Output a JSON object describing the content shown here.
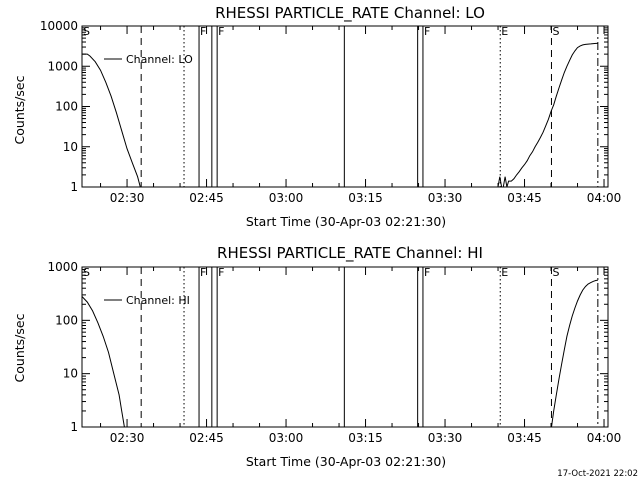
{
  "stamp": "17-Oct-2021 22:02",
  "chart_data": [
    {
      "type": "line",
      "title": "RHESSI PARTICLE_RATE Channel: LO",
      "xlabel": "Start Time (30-Apr-03 02:21:30)",
      "ylabel": "Counts/sec",
      "yscale": "log",
      "xlim": [
        "02:21:30",
        "04:00:45"
      ],
      "ylim": [
        1,
        10000
      ],
      "xticks": [
        "02:30",
        "02:45",
        "03:00",
        "03:15",
        "03:30",
        "03:45",
        "04:00"
      ],
      "yticks": [
        "1",
        "10",
        "100",
        "1000",
        "10000"
      ],
      "legend": {
        "position": "top-left",
        "label": "Channel: LO"
      },
      "markers": [
        {
          "label": "S",
          "time": "02:21:30",
          "style": "solid"
        },
        {
          "label": "",
          "time": "02:32:40",
          "style": "dashed"
        },
        {
          "label": "",
          "time": "02:40:45",
          "style": "dotted"
        },
        {
          "label": "F",
          "time": "02:43:35",
          "style": "solid"
        },
        {
          "label": "F",
          "time": "02:47:00",
          "style": "solid"
        },
        {
          "label": "",
          "time": "02:46:00",
          "style": "solid"
        },
        {
          "label": "",
          "time": "03:11:00",
          "style": "solid"
        },
        {
          "label": "F",
          "time": "03:25:50",
          "style": "solid"
        },
        {
          "label": "",
          "time": "03:24:50",
          "style": "solid"
        },
        {
          "label": "E",
          "time": "03:40:25",
          "style": "dotted"
        },
        {
          "label": "S",
          "time": "03:50:05",
          "style": "dashed"
        },
        {
          "label": "",
          "time": "03:58:50",
          "style": "dashdot"
        }
      ],
      "series": [
        {
          "segments": [
            {
              "time": [
                "02:21:30",
                "02:22:30",
                "02:23:00",
                "02:24:00",
                "02:25:00",
                "02:26:00",
                "02:27:00",
                "02:28:00",
                "02:29:00",
                "02:30:00",
                "02:31:00",
                "02:32:00",
                "02:32:30"
              ],
              "y": [
                2000,
                2000,
                1800,
                1300,
                800,
                400,
                180,
                70,
                25,
                9,
                4,
                1.8,
                1
              ]
            },
            {
              "time": [
                "03:40:00",
                "03:40:20",
                "03:40:40",
                "03:41:00",
                "03:41:20",
                "03:41:40",
                "03:42:00",
                "03:42:30",
                "03:43:00",
                "03:43:30",
                "03:44:00",
                "03:44:30",
                "03:45:00",
                "03:45:30",
                "03:46:00",
                "03:46:30",
                "03:47:00",
                "03:47:30",
                "03:48:00",
                "03:48:30",
                "03:49:00",
                "03:49:30",
                "03:50:00",
                "03:50:30",
                "03:51:00",
                "03:51:30",
                "03:52:00",
                "03:52:30",
                "03:53:00",
                "03:53:30",
                "03:54:00",
                "03:54:30",
                "03:55:00",
                "03:55:30",
                "03:56:00",
                "03:56:30",
                "03:57:00",
                "03:57:30",
                "03:58:00",
                "03:58:30",
                "03:58:50"
              ],
              "y": [
                1,
                1.8,
                1,
                1,
                1.8,
                1,
                1.4,
                1.4,
                1.6,
                2,
                2.4,
                3,
                3.6,
                4.5,
                6,
                7.5,
                10,
                13,
                17,
                23,
                33,
                48,
                75,
                110,
                180,
                290,
                450,
                700,
                1000,
                1400,
                1900,
                2400,
                2900,
                3200,
                3400,
                3500,
                3550,
                3600,
                3650,
                3700,
                3700
              ]
            }
          ]
        }
      ]
    },
    {
      "type": "line",
      "title": "RHESSI PARTICLE_RATE Channel: HI",
      "xlabel": "Start Time (30-Apr-03 02:21:30)",
      "ylabel": "Counts/sec",
      "yscale": "log",
      "xlim": [
        "02:21:30",
        "04:00:45"
      ],
      "ylim": [
        1,
        1000
      ],
      "xticks": [
        "02:30",
        "02:45",
        "03:00",
        "03:15",
        "03:30",
        "03:45",
        "04:00"
      ],
      "yticks": [
        "1",
        "10",
        "100",
        "1000"
      ],
      "legend": {
        "position": "top-left",
        "label": "Channel: HI"
      },
      "markers": [
        {
          "label": "S",
          "time": "02:21:30",
          "style": "solid"
        },
        {
          "label": "",
          "time": "02:32:40",
          "style": "dashed"
        },
        {
          "label": "",
          "time": "02:40:45",
          "style": "dotted"
        },
        {
          "label": "F",
          "time": "02:43:35",
          "style": "solid"
        },
        {
          "label": "F",
          "time": "02:47:00",
          "style": "solid"
        },
        {
          "label": "",
          "time": "02:46:00",
          "style": "solid"
        },
        {
          "label": "",
          "time": "03:11:00",
          "style": "solid"
        },
        {
          "label": "F",
          "time": "03:25:50",
          "style": "solid"
        },
        {
          "label": "",
          "time": "03:24:50",
          "style": "solid"
        },
        {
          "label": "E",
          "time": "03:40:25",
          "style": "dotted"
        },
        {
          "label": "S",
          "time": "03:50:05",
          "style": "dashed"
        },
        {
          "label": "",
          "time": "03:58:50",
          "style": "dashdot"
        }
      ],
      "series": [
        {
          "segments": [
            {
              "time": [
                "02:21:30",
                "02:22:30",
                "02:23:30",
                "02:24:30",
                "02:25:30",
                "02:26:30",
                "02:27:30",
                "02:28:30",
                "02:29:00",
                "02:29:30"
              ],
              "y": [
                280,
                220,
                150,
                90,
                50,
                25,
                10,
                4,
                2,
                1
              ]
            },
            {
              "time": [
                "03:50:05",
                "03:50:30",
                "03:51:00",
                "03:51:30",
                "03:52:00",
                "03:52:30",
                "03:53:00",
                "03:53:30",
                "03:54:00",
                "03:54:30",
                "03:55:00",
                "03:55:30",
                "03:56:00",
                "03:56:30",
                "03:57:00",
                "03:57:30",
                "03:58:00",
                "03:58:30",
                "03:58:50"
              ],
              "y": [
                1,
                2,
                4,
                8,
                15,
                28,
                50,
                80,
                120,
                170,
                230,
                300,
                370,
                430,
                480,
                510,
                540,
                560,
                560
              ]
            }
          ]
        }
      ]
    }
  ]
}
